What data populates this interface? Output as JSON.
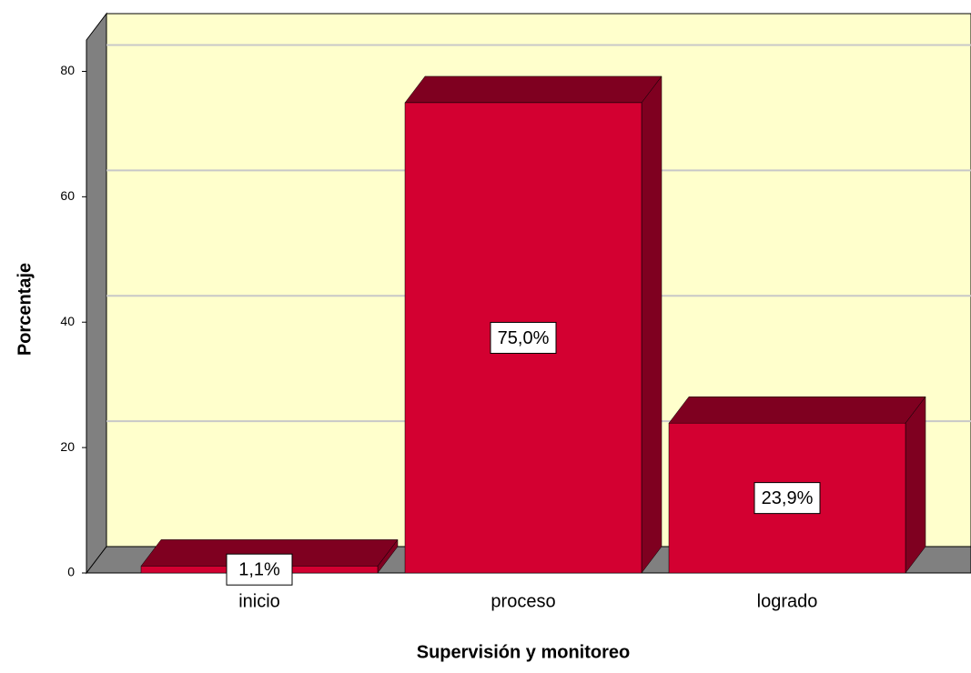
{
  "chart_data": {
    "type": "bar3d",
    "x_label": "Supervisión y monitoreo",
    "y_label": "Porcentaje",
    "categories": [
      "inicio",
      "proceso",
      "logrado"
    ],
    "values": [
      1.1,
      75.0,
      23.9
    ],
    "value_labels": [
      "1,1%",
      "75,0%",
      "23,9%"
    ],
    "color": "#d30031",
    "side_color": "#7f0020",
    "ylim": [
      0,
      85
    ],
    "yticks": [
      0,
      20,
      40,
      60,
      80
    ],
    "grid": true,
    "background": "#ffffcc"
  }
}
